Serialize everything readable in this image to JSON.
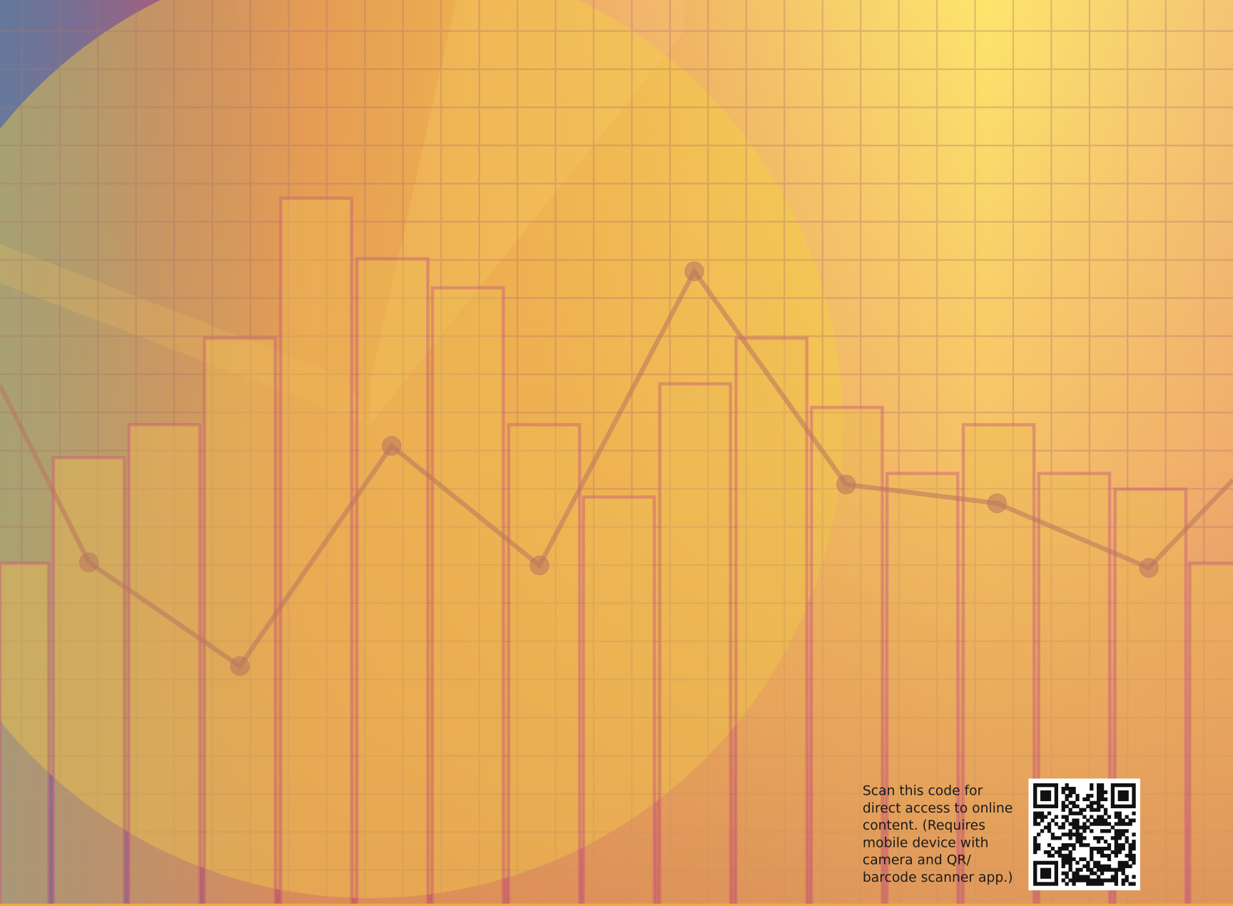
{
  "qr_caption": {
    "lines": [
      "Scan this code for",
      "direct access to online",
      "content. (Requires",
      "mobile device with",
      "camera and QR/",
      "barcode scanner app.)"
    ]
  }
}
